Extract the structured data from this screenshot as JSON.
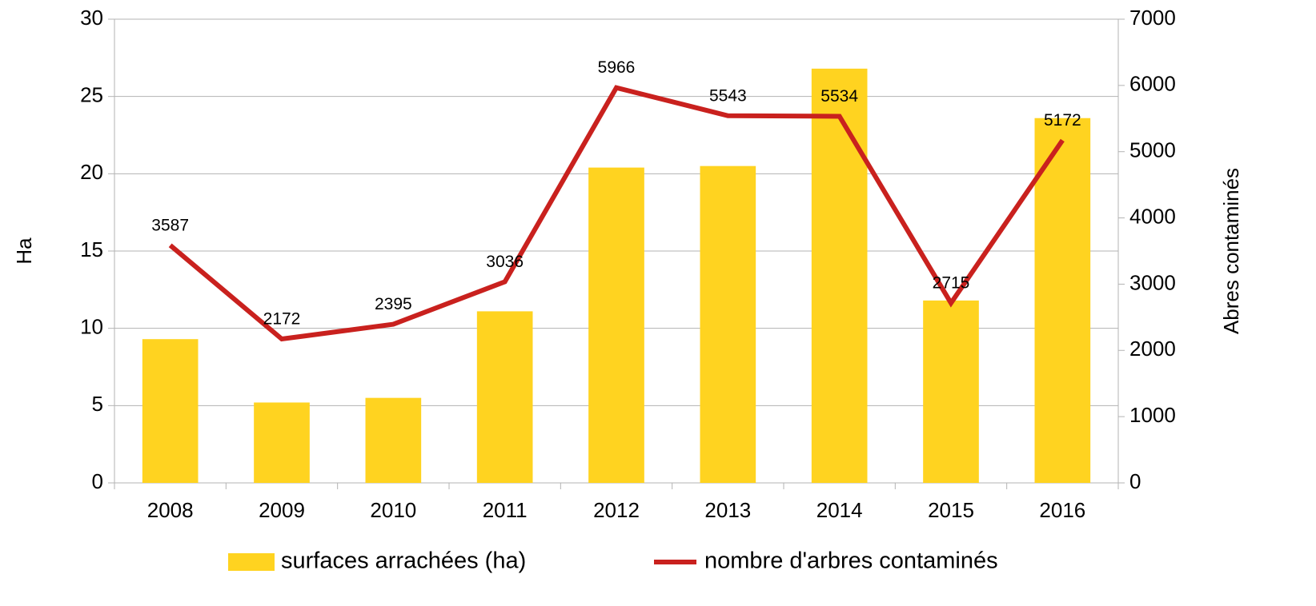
{
  "chart_data": {
    "type": "bar",
    "categories": [
      "2008",
      "2009",
      "2010",
      "2011",
      "2012",
      "2013",
      "2014",
      "2015",
      "2016"
    ],
    "series": [
      {
        "name": "surfaces arrachées (ha)",
        "type": "bar",
        "color": "#ffd320",
        "values": [
          9.3,
          5.2,
          5.5,
          11.1,
          20.4,
          20.5,
          26.8,
          11.8,
          23.6
        ]
      },
      {
        "name": "nombre d'arbres contaminés",
        "type": "line",
        "axis": "y2",
        "color": "#c9211e",
        "values": [
          3587,
          2172,
          2395,
          3036,
          5966,
          5543,
          5534,
          2715,
          5172
        ]
      }
    ],
    "ylabel": "Ha",
    "y2label": "Abres contaminés",
    "ylim": [
      0,
      30
    ],
    "yticks": [
      0,
      5,
      10,
      15,
      20,
      25,
      30
    ],
    "y2lim": [
      0,
      7000
    ],
    "y2ticks": [
      0,
      1000,
      2000,
      3000,
      4000,
      5000,
      6000,
      7000
    ],
    "grid": true,
    "legend": "bottom"
  }
}
